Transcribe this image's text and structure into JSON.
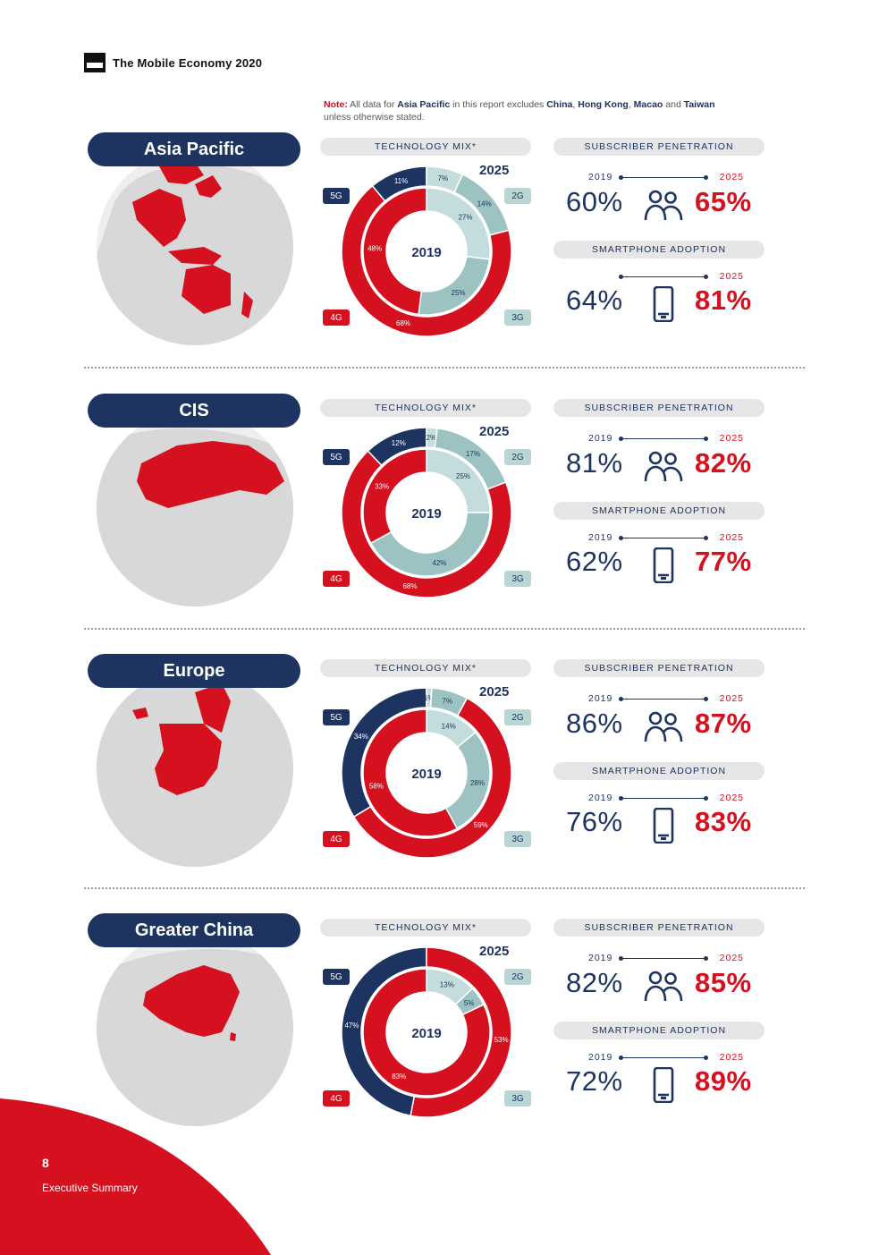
{
  "header": {
    "title": "The Mobile Economy 2020"
  },
  "note": {
    "label": "Note:",
    "t1": " All data for ",
    "b1": "Asia Pacific",
    "t2": " in this report excludes ",
    "b2": "China",
    "t3": ", ",
    "b3": "Hong Kong",
    "t4": ", ",
    "b4": "Macao",
    "t5": " and ",
    "b5": "Taiwan",
    "t6": " unless otherwise stated."
  },
  "labels": {
    "technology_mix": "TECHNOLOGY MIX*",
    "subscriber_penetration": "SUBSCRIBER PENETRATION",
    "smartphone_adoption": "SMARTPHONE ADOPTION",
    "year_inner": "2019",
    "year_outer": "2025",
    "tag_5g": "5G",
    "tag_2g": "2G",
    "tag_4g": "4G",
    "tag_3g": "3G"
  },
  "colors": {
    "navy": "#1d3461",
    "red": "#d5101f",
    "teal_dark": "#9cc3c2",
    "teal_light": "#c4dcdb",
    "globe": "#eeeeee",
    "land": "#d8d8d8"
  },
  "regions": [
    {
      "name": "Asia Pacific",
      "subscriber": {
        "from_year": "2019",
        "to_year": "2025",
        "from": "60%",
        "to": "65%"
      },
      "smartphone": {
        "from_year": "",
        "to_year": "2025",
        "from": "64%",
        "to": "81%"
      },
      "chart_data": {
        "type": "donut",
        "inner_2019": [
          {
            "name": "2G",
            "value": 27,
            "label": "27%"
          },
          {
            "name": "3G",
            "value": 25,
            "label": "25%"
          },
          {
            "name": "4G",
            "value": 48,
            "label": "48%"
          }
        ],
        "outer_2025": [
          {
            "name": "5G",
            "value": 11,
            "label": "11%"
          },
          {
            "name": "2G",
            "value": 7,
            "label": "7%"
          },
          {
            "name": "3G",
            "value": 14,
            "label": "14%"
          },
          {
            "name": "4G",
            "value": 68,
            "label": "68%"
          }
        ]
      }
    },
    {
      "name": "CIS",
      "subscriber": {
        "from_year": "2019",
        "to_year": "2025",
        "from": "81%",
        "to": "82%"
      },
      "smartphone": {
        "from_year": "2019",
        "to_year": "2025",
        "from": "62%",
        "to": "77%"
      },
      "chart_data": {
        "type": "donut",
        "inner_2019": [
          {
            "name": "2G",
            "value": 25,
            "label": "25%"
          },
          {
            "name": "3G",
            "value": 42,
            "label": "42%"
          },
          {
            "name": "4G",
            "value": 33,
            "label": "33%"
          }
        ],
        "outer_2025": [
          {
            "name": "5G",
            "value": 12,
            "label": "12%"
          },
          {
            "name": "2G",
            "value": 2,
            "label": "2%"
          },
          {
            "name": "3G",
            "value": 17,
            "label": "17%"
          },
          {
            "name": "4G",
            "value": 68,
            "label": "68%"
          }
        ]
      }
    },
    {
      "name": "Europe",
      "subscriber": {
        "from_year": "2019",
        "to_year": "2025",
        "from": "86%",
        "to": "87%"
      },
      "smartphone": {
        "from_year": "2019",
        "to_year": "2025",
        "from": "76%",
        "to": "83%"
      },
      "chart_data": {
        "type": "donut",
        "inner_2019": [
          {
            "name": "2G",
            "value": 14,
            "label": "14%"
          },
          {
            "name": "3G",
            "value": 28,
            "label": "28%"
          },
          {
            "name": "4G",
            "value": 58,
            "label": "58%"
          }
        ],
        "outer_2025": [
          {
            "name": "5G",
            "value": 34,
            "label": "34%"
          },
          {
            "name": "2G",
            "value": 1,
            "label": "1%"
          },
          {
            "name": "3G",
            "value": 7,
            "label": "7%"
          },
          {
            "name": "4G",
            "value": 59,
            "label": "59%"
          }
        ]
      }
    },
    {
      "name": "Greater China",
      "subscriber": {
        "from_year": "2019",
        "to_year": "2025",
        "from": "82%",
        "to": "85%"
      },
      "smartphone": {
        "from_year": "2019",
        "to_year": "2025",
        "from": "72%",
        "to": "89%"
      },
      "chart_data": {
        "type": "donut",
        "inner_2019": [
          {
            "name": "2G",
            "value": 13,
            "label": "13%"
          },
          {
            "name": "3G",
            "value": 5,
            "label": "5%"
          },
          {
            "name": "4G",
            "value": 83,
            "label": "83%"
          }
        ],
        "outer_2025": [
          {
            "name": "5G",
            "value": 47,
            "label": "47%"
          },
          {
            "name": "4G",
            "value": 53,
            "label": "53%"
          }
        ]
      }
    }
  ],
  "footer": {
    "page_number": "8",
    "section": "Executive Summary"
  }
}
